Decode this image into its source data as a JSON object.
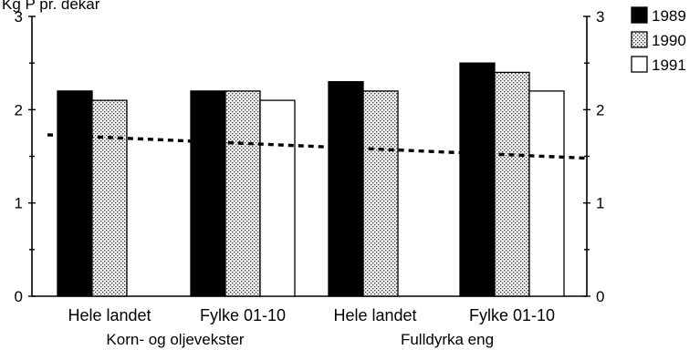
{
  "chart_data": {
    "type": "bar",
    "ylabel": "Kg P pr. dekar",
    "ylim": [
      0,
      3
    ],
    "yticks": [
      0,
      1,
      2,
      3
    ],
    "grid": false,
    "legend_position": "top-right",
    "categories": [
      "Hele landet",
      "Fylke 01-10",
      "Hele landet",
      "Fylke 01-10"
    ],
    "groups": [
      {
        "label": "Korn- og oljevekster",
        "categories": [
          0,
          1
        ]
      },
      {
        "label": "Fulldyrka eng",
        "categories": [
          2,
          3
        ]
      }
    ],
    "series": [
      {
        "name": "1989",
        "values": [
          2.2,
          2.2,
          2.3,
          2.5
        ],
        "color": "#000000",
        "pattern": "solid"
      },
      {
        "name": "1990",
        "values": [
          2.1,
          2.2,
          2.2,
          2.4
        ],
        "color": "#c8c8c8",
        "pattern": "stipple"
      },
      {
        "name": "1991",
        "values": [
          null,
          2.1,
          null,
          2.2
        ],
        "color": "#ffffff",
        "pattern": "none"
      }
    ],
    "trend_line": {
      "style": "dashed",
      "y_start": 1.73,
      "y_end": 1.48
    }
  }
}
